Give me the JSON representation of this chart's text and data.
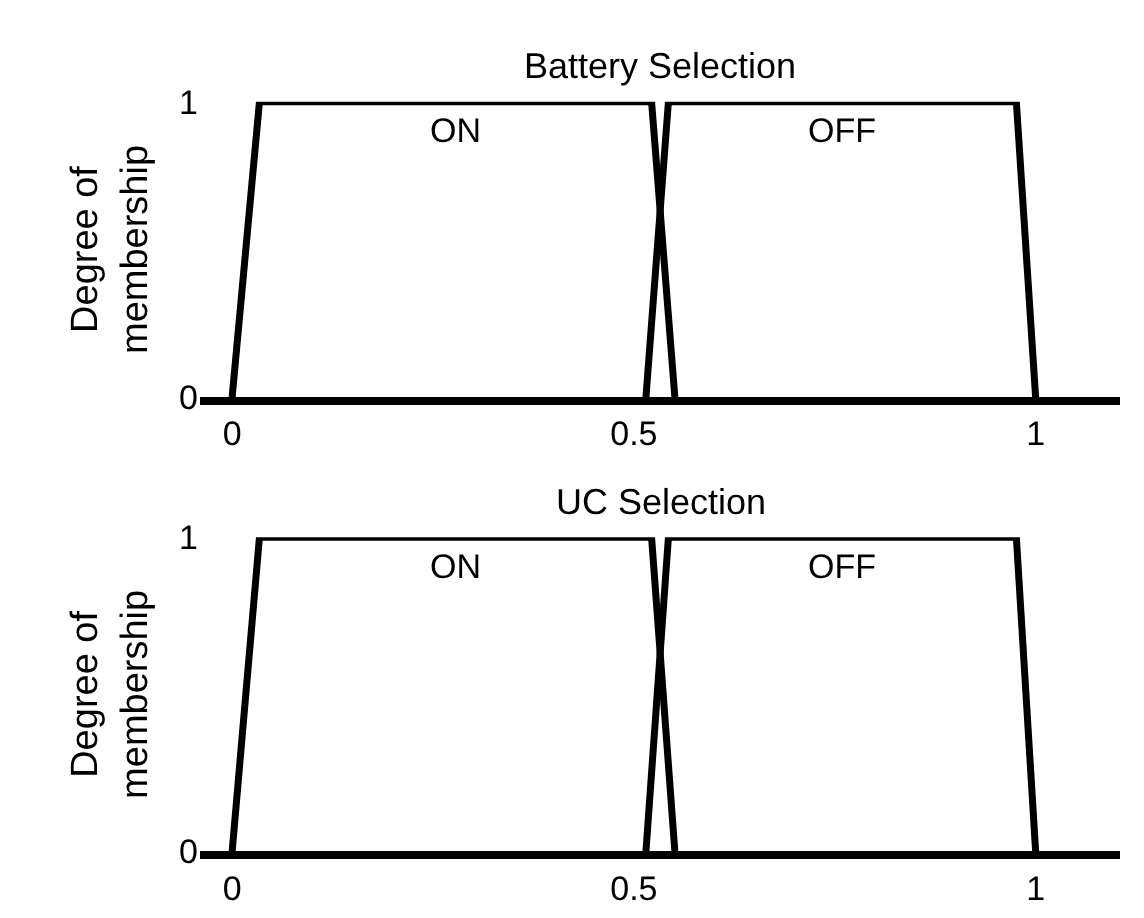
{
  "chart_data": [
    {
      "type": "line",
      "title": "Battery Selection",
      "ylabel": "Degree of\nmembership",
      "xlim": [
        -0.04,
        1.105
      ],
      "ylim": [
        0,
        1
      ],
      "xticks": [
        0,
        0.5,
        1
      ],
      "yticks": [
        0,
        1
      ],
      "marker": "none",
      "line_style": "solid",
      "series": [
        {
          "name": "ON",
          "color": "#000000",
          "x": [
            0,
            0.034,
            0.522,
            0.551
          ],
          "values": [
            0,
            1,
            1,
            0
          ]
        },
        {
          "name": "OFF",
          "color": "#000000",
          "x": [
            0.515,
            0.543,
            0.976,
            1.0
          ],
          "values": [
            0,
            1,
            1,
            0
          ]
        }
      ]
    },
    {
      "type": "line",
      "title": "UC Selection",
      "ylabel": "Degree of\nmembership",
      "xlim": [
        -0.04,
        1.105
      ],
      "ylim": [
        0,
        1
      ],
      "xticks": [
        0,
        0.5,
        1
      ],
      "yticks": [
        0,
        1
      ],
      "marker": "none",
      "line_style": "solid",
      "series": [
        {
          "name": "ON",
          "color": "#000000",
          "x": [
            0,
            0.034,
            0.522,
            0.551
          ],
          "values": [
            0,
            1,
            1,
            0
          ]
        },
        {
          "name": "OFF",
          "color": "#000000",
          "x": [
            0.515,
            0.543,
            0.976,
            1.0
          ],
          "values": [
            0,
            1,
            1,
            0
          ]
        }
      ]
    }
  ]
}
